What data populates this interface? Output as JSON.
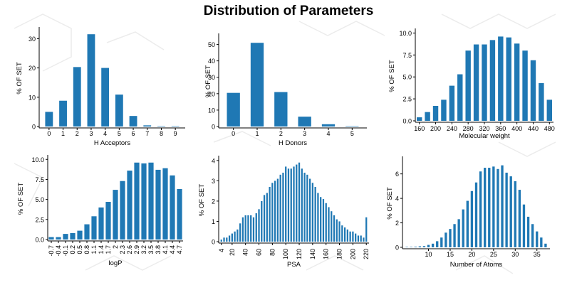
{
  "title": "Distribution of Parameters",
  "bar_color": "#1f78b4",
  "chart_data": [
    {
      "type": "bar",
      "xlabel": "H Acceptors",
      "ylabel": "% OF SET",
      "categories": [
        "0",
        "1",
        "2",
        "3",
        "4",
        "5",
        "6",
        "7",
        "8",
        "9"
      ],
      "values": [
        5.0,
        8.8,
        20.3,
        31.5,
        20.0,
        10.9,
        3.6,
        0.4,
        0.05,
        0.0
      ],
      "ylim": [
        0,
        33
      ],
      "yticks": [
        0,
        10,
        20,
        30
      ],
      "ytick_labels": [
        "0",
        "10",
        "20",
        "30"
      ]
    },
    {
      "type": "bar",
      "xlabel": "H Donors",
      "ylabel": "% OF SET",
      "categories": [
        "0",
        "1",
        "2",
        "3",
        "4",
        "5"
      ],
      "values": [
        20.5,
        51.0,
        21.0,
        6.0,
        1.4,
        0.2
      ],
      "ylim": [
        0,
        55
      ],
      "yticks": [
        0,
        10,
        20,
        30,
        40,
        50
      ],
      "ytick_labels": [
        "0",
        "10",
        "20",
        "30",
        "40",
        "50"
      ]
    },
    {
      "type": "bar",
      "xlabel": "Molecular weight",
      "ylabel": "% OF SET",
      "x": [
        160,
        180,
        200,
        220,
        240,
        260,
        280,
        300,
        320,
        340,
        360,
        380,
        400,
        420,
        440,
        460,
        480
      ],
      "values": [
        0.4,
        1.0,
        1.7,
        2.4,
        4.0,
        5.3,
        8.0,
        8.7,
        8.7,
        9.2,
        9.6,
        9.5,
        8.8,
        8.0,
        6.9,
        4.3,
        2.4
      ],
      "xticks": [
        160,
        200,
        240,
        280,
        320,
        360,
        400,
        440,
        480
      ],
      "xtick_labels": [
        "160",
        "200",
        "240",
        "280",
        "320",
        "360",
        "400",
        "440",
        "480"
      ],
      "ylim": [
        0,
        10.2
      ],
      "yticks": [
        0,
        2.5,
        5,
        7.5,
        10
      ],
      "ytick_labels": [
        "0.0",
        "2.5",
        "5.0",
        "7.5",
        "10.0"
      ]
    },
    {
      "type": "bar",
      "xlabel": "logP",
      "ylabel": "% OF SET",
      "categories": [
        "-0.7",
        "-0.4",
        "-0.1",
        "0.2",
        "0.5",
        "0.8",
        "1.1",
        "1.4",
        "1.7",
        "2",
        "2.3",
        "2.6",
        "2.9",
        "3.2",
        "3.5",
        "3.8",
        "4.1",
        "4.4",
        "4.7"
      ],
      "values": [
        0.3,
        0.3,
        0.7,
        0.8,
        1.1,
        1.9,
        2.9,
        4.0,
        4.7,
        6.2,
        7.3,
        8.6,
        9.6,
        9.5,
        9.6,
        8.7,
        8.9,
        8.0,
        6.3
      ],
      "ylim": [
        0,
        10.2
      ],
      "yticks": [
        0,
        2.5,
        5,
        7.5,
        10
      ],
      "ytick_labels": [
        "0.0",
        "2.5",
        "5.0",
        "7.5",
        "10.0"
      ]
    },
    {
      "type": "bar",
      "xlabel": "PSA",
      "ylabel": "% OF SET",
      "x": [
        4,
        8,
        12,
        16,
        20,
        24,
        28,
        32,
        36,
        40,
        44,
        48,
        52,
        56,
        60,
        64,
        68,
        72,
        76,
        80,
        84,
        88,
        92,
        96,
        100,
        104,
        108,
        112,
        116,
        120,
        124,
        128,
        132,
        136,
        140,
        144,
        148,
        152,
        156,
        160,
        164,
        168,
        172,
        176,
        180,
        184,
        188,
        192,
        196,
        200,
        204,
        208,
        212,
        216,
        220
      ],
      "values": [
        0.1,
        0.2,
        0.2,
        0.3,
        0.4,
        0.5,
        0.6,
        0.9,
        1.2,
        1.3,
        1.3,
        1.3,
        1.2,
        1.4,
        1.6,
        2.0,
        2.3,
        2.4,
        2.7,
        2.9,
        3.0,
        3.1,
        3.3,
        3.4,
        3.7,
        3.6,
        3.6,
        3.7,
        3.8,
        3.9,
        3.6,
        3.4,
        3.3,
        3.1,
        2.9,
        2.7,
        2.4,
        2.2,
        2.1,
        1.9,
        1.7,
        1.5,
        1.3,
        1.1,
        1.0,
        0.8,
        0.7,
        0.6,
        0.5,
        0.5,
        0.4,
        0.3,
        0.3,
        0.2,
        1.2
      ],
      "xticks": [
        4,
        20,
        40,
        60,
        80,
        100,
        120,
        140,
        160,
        180,
        200,
        220
      ],
      "xtick_labels": [
        "4",
        "20",
        "40",
        "60",
        "80",
        "100",
        "120",
        "140",
        "160",
        "180",
        "200",
        "220"
      ],
      "ylim": [
        0,
        4.1
      ],
      "yticks": [
        0,
        1,
        2,
        3,
        4
      ],
      "ytick_labels": [
        "0",
        "1",
        "2",
        "3",
        "4"
      ]
    },
    {
      "type": "bar",
      "xlabel": "Number of Atoms",
      "ylabel": "% OF SET",
      "x": [
        5,
        6,
        7,
        8,
        9,
        10,
        11,
        12,
        13,
        14,
        15,
        16,
        17,
        18,
        19,
        20,
        21,
        22,
        23,
        24,
        25,
        26,
        27,
        28,
        29,
        30,
        31,
        32,
        33,
        34,
        35,
        36,
        37
      ],
      "values": [
        0.02,
        0.03,
        0.05,
        0.08,
        0.1,
        0.2,
        0.3,
        0.5,
        0.8,
        1.2,
        1.5,
        1.9,
        2.3,
        3.1,
        3.8,
        4.6,
        5.3,
        6.2,
        6.5,
        6.5,
        6.6,
        6.4,
        6.7,
        6.1,
        5.8,
        5.4,
        4.7,
        3.5,
        2.5,
        1.9,
        1.3,
        0.8,
        0.3
      ],
      "xticks": [
        10,
        15,
        20,
        25,
        30,
        35
      ],
      "xtick_labels": [
        "10",
        "15",
        "20",
        "25",
        "30",
        "35"
      ],
      "ylim": [
        0,
        7.2
      ],
      "yticks": [
        0,
        2,
        4,
        6
      ],
      "ytick_labels": [
        "0",
        "2",
        "4",
        "6"
      ]
    }
  ]
}
